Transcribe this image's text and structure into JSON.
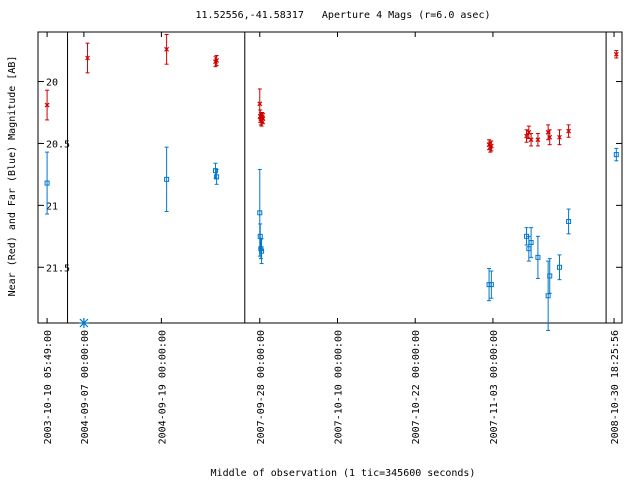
{
  "chart_data": {
    "type": "scatter",
    "title": "11.52556,-41.58317   Aperture 4 Mags (r=6.0 asec)",
    "xlabel": "Middle of observation (1 tic=345600 seconds)",
    "ylabel": "Near (Red) and Far (Blue) Magnitude [AB]",
    "y_reversed": true,
    "ylim": [
      19.6,
      21.95
    ],
    "y_ticks": [
      {
        "value": 20,
        "label": "20"
      },
      {
        "value": 20.5,
        "label": "20.5"
      },
      {
        "value": 21,
        "label": "21"
      },
      {
        "value": 21.5,
        "label": "21.5"
      }
    ],
    "x_tick_labels": [
      "2003-10-10 05:49:00",
      "2004-09-07 00:00:00",
      "2004-09-19 00:00:00",
      "2007-09-28 00:00:00",
      "2007-10-10 00:00:00",
      "2007-10-22 00:00:00",
      "2007-11-03 00:00:00",
      "2008-10-30 18:25:56"
    ],
    "x_ticks": [
      {
        "x": 0.0,
        "label": 0
      },
      {
        "x": 1.62,
        "label": 1
      },
      {
        "x": 5.03,
        "label": 2
      },
      {
        "x": 9.36,
        "label": 3
      },
      {
        "x": 12.78,
        "label": 4
      },
      {
        "x": 16.2,
        "label": 5
      },
      {
        "x": 19.62,
        "label": 6
      },
      {
        "x": 24.95,
        "label": 7
      }
    ],
    "xlim": [
      -0.4,
      25.3
    ],
    "segment_breaks": [
      0.9,
      8.7,
      24.6
    ],
    "series": [
      {
        "color": "#cc0000",
        "marker": "x",
        "points": [
          {
            "x": 0.0,
            "y": 20.19,
            "err": 0.12
          },
          {
            "x": 1.78,
            "y": 19.81,
            "err": 0.12
          },
          {
            "x": 5.26,
            "y": 19.74,
            "err": 0.12
          },
          {
            "x": 7.41,
            "y": 19.84,
            "err": 0.04
          },
          {
            "x": 7.46,
            "y": 19.83,
            "err": 0.04
          },
          {
            "x": 9.36,
            "y": 20.18,
            "err": 0.12
          },
          {
            "x": 9.38,
            "y": 20.28,
            "err": 0.05
          },
          {
            "x": 9.41,
            "y": 20.3,
            "err": 0.05
          },
          {
            "x": 9.44,
            "y": 20.31,
            "err": 0.05
          },
          {
            "x": 9.47,
            "y": 20.29,
            "err": 0.04
          },
          {
            "x": 9.5,
            "y": 20.3,
            "err": 0.04
          },
          {
            "x": 19.45,
            "y": 20.51,
            "err": 0.04
          },
          {
            "x": 19.5,
            "y": 20.53,
            "err": 0.04
          },
          {
            "x": 19.55,
            "y": 20.52,
            "err": 0.04
          },
          {
            "x": 21.1,
            "y": 20.44,
            "err": 0.05
          },
          {
            "x": 21.2,
            "y": 20.41,
            "err": 0.05
          },
          {
            "x": 21.3,
            "y": 20.47,
            "err": 0.05
          },
          {
            "x": 21.6,
            "y": 20.47,
            "err": 0.05
          },
          {
            "x": 22.05,
            "y": 20.41,
            "err": 0.06
          },
          {
            "x": 22.12,
            "y": 20.45,
            "err": 0.06
          },
          {
            "x": 22.55,
            "y": 20.45,
            "err": 0.06
          },
          {
            "x": 22.95,
            "y": 20.4,
            "err": 0.05
          },
          {
            "x": 25.05,
            "y": 19.78,
            "err": 0.03
          }
        ]
      },
      {
        "color": "#0077cc",
        "marker": "square",
        "points": [
          {
            "x": 0.0,
            "y": 20.82,
            "err": 0.25
          },
          {
            "x": 5.26,
            "y": 20.79,
            "err": 0.26
          },
          {
            "x": 7.41,
            "y": 20.72,
            "err": 0.06
          },
          {
            "x": 7.46,
            "y": 20.77,
            "err": 0.06
          },
          {
            "x": 9.36,
            "y": 21.06,
            "err": 0.35
          },
          {
            "x": 9.38,
            "y": 21.25,
            "err": 0.1
          },
          {
            "x": 9.41,
            "y": 21.35,
            "err": 0.08
          },
          {
            "x": 9.44,
            "y": 21.37,
            "err": 0.1
          },
          {
            "x": 19.45,
            "y": 21.64,
            "err": 0.13
          },
          {
            "x": 19.55,
            "y": 21.64,
            "err": 0.11
          },
          {
            "x": 21.1,
            "y": 21.25,
            "err": 0.07
          },
          {
            "x": 21.2,
            "y": 21.35,
            "err": 0.1
          },
          {
            "x": 21.3,
            "y": 21.3,
            "err": 0.12
          },
          {
            "x": 21.6,
            "y": 21.42,
            "err": 0.17
          },
          {
            "x": 22.05,
            "y": 21.73,
            "err": 0.28
          },
          {
            "x": 22.12,
            "y": 21.57,
            "err": 0.14
          },
          {
            "x": 22.55,
            "y": 21.5,
            "err": 0.1
          },
          {
            "x": 22.95,
            "y": 21.13,
            "err": 0.1
          },
          {
            "x": 25.05,
            "y": 20.59,
            "err": 0.05
          }
        ]
      }
    ],
    "special_markers": [
      {
        "x": 1.62,
        "y": 21.95,
        "color": "#0077cc",
        "marker": "asterisk"
      }
    ],
    "grid": false,
    "legend": "none"
  }
}
